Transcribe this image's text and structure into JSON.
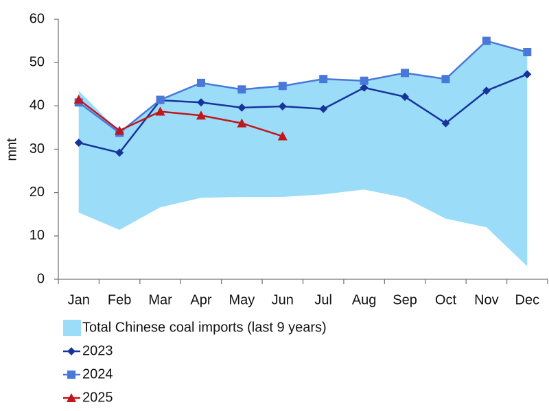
{
  "chart_data": {
    "type": "line",
    "y_label": "mnt",
    "categories": [
      "Jan",
      "Feb",
      "Mar",
      "Apr",
      "May",
      "Jun",
      "Jul",
      "Aug",
      "Sep",
      "Oct",
      "Nov",
      "Dec"
    ],
    "ylim": [
      0,
      60
    ],
    "yticks": [
      0,
      10,
      20,
      30,
      40,
      50,
      60
    ],
    "grid": false,
    "legend": "bottom",
    "series": [
      {
        "name": "Total Chinese coal imports (last 9 years)",
        "type": "area_range",
        "color": "#9bdcf8",
        "low": [
          15.4,
          11.4,
          16.6,
          18.8,
          19.0,
          19.0,
          19.6,
          20.7,
          18.8,
          14.0,
          12.0,
          3.0
        ],
        "high": [
          43.5,
          34.0,
          41.5,
          45.5,
          44.0,
          44.6,
          46.4,
          46.0,
          47.6,
          46.4,
          55.0,
          52.5
        ]
      },
      {
        "name": "2023",
        "color": "#16349a",
        "marker": "diamond",
        "values": [
          31.5,
          29.2,
          41.3,
          40.8,
          39.6,
          39.9,
          39.3,
          44.2,
          42.1,
          36.0,
          43.5,
          47.3
        ]
      },
      {
        "name": "2024",
        "color": "#4a78d8",
        "marker": "square",
        "values": [
          40.8,
          33.8,
          41.4,
          45.3,
          43.8,
          44.6,
          46.2,
          45.8,
          47.6,
          46.2,
          55.0,
          52.4
        ]
      },
      {
        "name": "2025",
        "color": "#c0161c",
        "marker": "triangle",
        "values": [
          41.5,
          34.3,
          38.7,
          37.8,
          36.0,
          33.0,
          null,
          null,
          null,
          null,
          null,
          null
        ]
      }
    ]
  }
}
